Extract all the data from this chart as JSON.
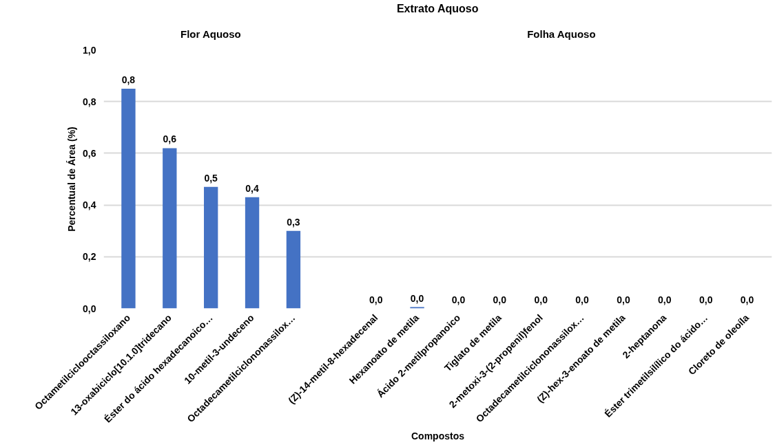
{
  "chart_data": {
    "type": "bar",
    "title": "Extrato Aquoso",
    "xlabel": "Compostos",
    "ylabel": "Percentual de Área (%)",
    "annotations": [
      "Flor Aquoso",
      "Folha Aquoso"
    ],
    "categories": [
      "Octametilciclooctassiloxano",
      "13-oxabiciclo[10.1.0]tridecano",
      "Éster do ácido hexadecanoico…",
      "10-metil-3-undeceno",
      "Octadecametilciclononassilox…",
      null,
      "(Z)-14-metil-8-hexadecenal",
      "Hexanoato de metila",
      "Ácido 2-metilpropanoico",
      "Tiglato de metila",
      "2-metoxi-3-(2-propenil)fenol",
      "Octadecametilciclononassilox…",
      "(Z)-hex-3-enoato de metila",
      "2-heptanona",
      "Éster trimetilsilílico do ácido…",
      "Cloreto de oleoíla"
    ],
    "values": [
      0.85,
      0.62,
      0.47,
      0.43,
      0.3,
      null,
      0,
      0.005,
      0,
      0,
      0,
      0,
      0,
      0,
      0,
      0
    ],
    "value_labels": [
      "0,8",
      "0,6",
      "0,5",
      "0,4",
      "0,3",
      null,
      "0,0",
      "0,0",
      "0,0",
      "0,0",
      "0,0",
      "0,0",
      "0,0",
      "0,0",
      "0,0",
      "0,0"
    ],
    "color": "#4472c4",
    "ylim": [
      0,
      1.0
    ],
    "yticks": [
      {
        "value": 0,
        "label": "0,0"
      },
      {
        "value": 0.2,
        "label": "0,2"
      },
      {
        "value": 0.4,
        "label": "0,4"
      },
      {
        "value": 0.6,
        "label": "0,6"
      },
      {
        "value": 0.8,
        "label": "0,8"
      },
      {
        "value": 1.0,
        "label": "1,0"
      }
    ],
    "grid": "y"
  }
}
